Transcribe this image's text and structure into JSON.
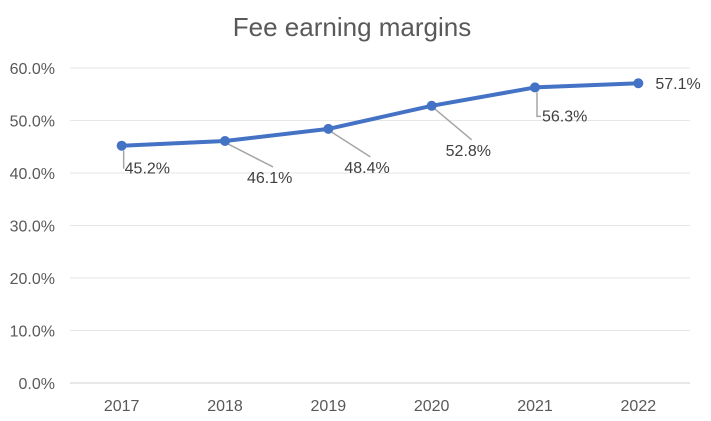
{
  "chart_data": {
    "type": "line",
    "title": "Fee earning margins",
    "x": [
      "2017",
      "2018",
      "2019",
      "2020",
      "2021",
      "2022"
    ],
    "series": [
      {
        "values": [
          45.2,
          46.1,
          48.4,
          52.8,
          56.3,
          57.1
        ]
      }
    ],
    "data_labels": [
      "45.2%",
      "46.1%",
      "48.4%",
      "52.8%",
      "56.3%",
      "57.1%"
    ],
    "y_ticks": [
      "0.0%",
      "10.0%",
      "20.0%",
      "30.0%",
      "40.0%",
      "50.0%",
      "60.0%"
    ],
    "ylim": [
      0,
      60
    ],
    "grid": true,
    "legend": "none",
    "colors": {
      "line": "#4472c4",
      "leader": "#a6a6a6"
    }
  }
}
